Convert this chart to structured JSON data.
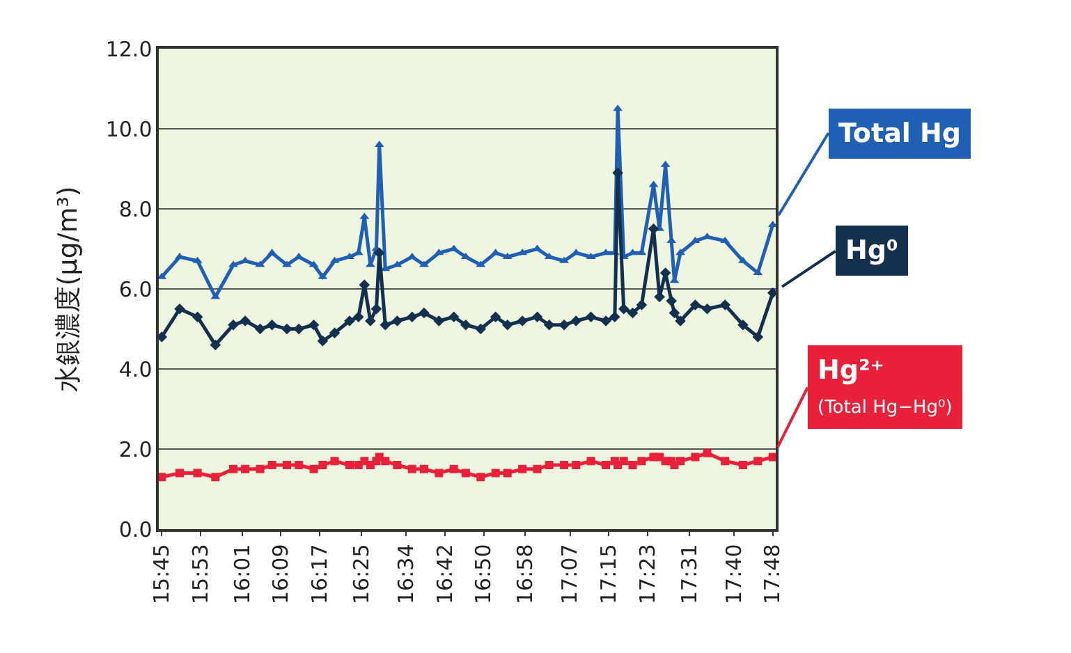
{
  "chart_data": {
    "type": "line",
    "ylabel": "水銀濃度(μg/m³)",
    "x": [
      15.75,
      15.81,
      15.87,
      15.93,
      15.99,
      16.03,
      16.08,
      16.12,
      16.17,
      16.21,
      16.26,
      16.29,
      16.33,
      16.38,
      16.41,
      16.43,
      16.45,
      16.47,
      16.48,
      16.5,
      16.54,
      16.59,
      16.63,
      16.68,
      16.73,
      16.77,
      16.82,
      16.87,
      16.91,
      16.96,
      17.01,
      17.05,
      17.1,
      17.14,
      17.19,
      17.24,
      17.27,
      17.28,
      17.3,
      17.33,
      17.36,
      17.4,
      17.42,
      17.44,
      17.46,
      17.47,
      17.49,
      17.54,
      17.58,
      17.64,
      17.7,
      17.75,
      17.8
    ],
    "series": [
      {
        "name": "Total Hg",
        "color": "#1f5fb4",
        "marker": "triangle",
        "values": [
          6.3,
          6.8,
          6.7,
          5.8,
          6.6,
          6.7,
          6.6,
          6.9,
          6.6,
          6.8,
          6.6,
          6.3,
          6.7,
          6.8,
          6.9,
          7.8,
          6.6,
          7.0,
          9.6,
          6.5,
          6.6,
          6.8,
          6.6,
          6.9,
          7.0,
          6.8,
          6.6,
          6.9,
          6.8,
          6.9,
          7.0,
          6.8,
          6.7,
          6.9,
          6.8,
          6.9,
          6.9,
          10.5,
          6.8,
          6.9,
          6.9,
          8.6,
          7.5,
          9.1,
          7.2,
          6.2,
          6.9,
          7.2,
          7.3,
          7.2,
          6.7,
          6.4,
          7.6
        ]
      },
      {
        "name": "Hg⁰",
        "color": "#13304f",
        "marker": "diamond",
        "values": [
          4.8,
          5.5,
          5.3,
          4.6,
          5.1,
          5.2,
          5.0,
          5.1,
          5.0,
          5.0,
          5.1,
          4.7,
          4.9,
          5.2,
          5.3,
          6.1,
          5.2,
          5.5,
          6.9,
          5.1,
          5.2,
          5.3,
          5.4,
          5.2,
          5.3,
          5.1,
          5.0,
          5.3,
          5.1,
          5.2,
          5.3,
          5.1,
          5.1,
          5.2,
          5.3,
          5.2,
          5.3,
          8.9,
          5.5,
          5.4,
          5.6,
          7.5,
          5.8,
          6.4,
          5.7,
          5.4,
          5.2,
          5.6,
          5.5,
          5.6,
          5.1,
          4.8,
          5.9
        ]
      },
      {
        "name": "Hg²⁺",
        "color": "#e8203a",
        "marker": "square",
        "values": [
          1.3,
          1.4,
          1.4,
          1.3,
          1.5,
          1.5,
          1.5,
          1.6,
          1.6,
          1.6,
          1.5,
          1.6,
          1.7,
          1.6,
          1.6,
          1.7,
          1.6,
          1.7,
          1.8,
          1.7,
          1.6,
          1.5,
          1.5,
          1.4,
          1.5,
          1.4,
          1.3,
          1.4,
          1.4,
          1.5,
          1.5,
          1.6,
          1.6,
          1.6,
          1.7,
          1.6,
          1.7,
          1.6,
          1.7,
          1.6,
          1.7,
          1.8,
          1.8,
          1.7,
          1.7,
          1.6,
          1.7,
          1.8,
          1.9,
          1.7,
          1.6,
          1.7,
          1.8
        ]
      }
    ],
    "annotations": [
      {
        "text": "(Total Hg−Hg⁰)",
        "x": 17.8,
        "y": 1.8
      }
    ],
    "xlim": [
      15.74,
      17.81
    ],
    "xticks": [
      {
        "value": 15.75,
        "label": "15:45"
      },
      {
        "value": 15.88,
        "label": "15:53"
      },
      {
        "value": 16.02,
        "label": "16:01"
      },
      {
        "value": 16.15,
        "label": "16:09"
      },
      {
        "value": 16.28,
        "label": "16:17"
      },
      {
        "value": 16.42,
        "label": "16:25"
      },
      {
        "value": 16.57,
        "label": "16:34"
      },
      {
        "value": 16.7,
        "label": "16:42"
      },
      {
        "value": 16.83,
        "label": "16:50"
      },
      {
        "value": 16.97,
        "label": "16:58"
      },
      {
        "value": 17.12,
        "label": "17:07"
      },
      {
        "value": 17.25,
        "label": "17:15"
      },
      {
        "value": 17.38,
        "label": "17:23"
      },
      {
        "value": 17.52,
        "label": "17:31"
      },
      {
        "value": 17.67,
        "label": "17:40"
      },
      {
        "value": 17.8,
        "label": "17:48"
      }
    ],
    "ylim": [
      0,
      12
    ],
    "yticks": [
      {
        "value": 0,
        "label": "0.0"
      },
      {
        "value": 2,
        "label": "2.0"
      },
      {
        "value": 4,
        "label": "4.0"
      },
      {
        "value": 6,
        "label": "6.0"
      },
      {
        "value": 8,
        "label": "8.0"
      },
      {
        "value": 10,
        "label": "10.0"
      },
      {
        "value": 12,
        "label": "12.0"
      }
    ],
    "grid": "y",
    "legend": false,
    "line_style": "solid"
  }
}
